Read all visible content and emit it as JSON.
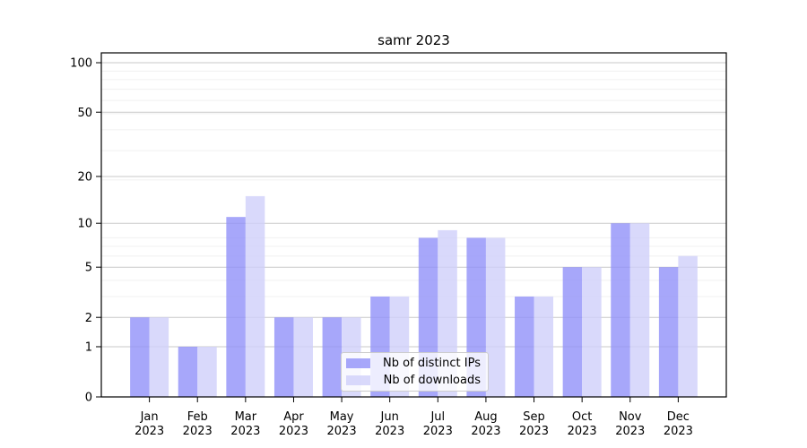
{
  "chart_data": {
    "type": "bar",
    "title": "samr 2023",
    "categories": [
      "Jan",
      "Feb",
      "Mar",
      "Apr",
      "May",
      "Jun",
      "Jul",
      "Aug",
      "Sep",
      "Oct",
      "Nov",
      "Dec"
    ],
    "category_year": "2023",
    "series": [
      {
        "name": "Nb of distinct IPs",
        "color": "#9191f9",
        "color_rendered": "#a9a9fa",
        "values": [
          2,
          1,
          11,
          2,
          2,
          3,
          8,
          8,
          3,
          5,
          10,
          5
        ]
      },
      {
        "name": "Nb of downloads",
        "color": "#cfcffa",
        "color_rendered": "#d9d9fb",
        "values": [
          2,
          1,
          15,
          2,
          2,
          3,
          9,
          8,
          3,
          5,
          10,
          6
        ]
      }
    ],
    "bar_opacity": 0.8,
    "yscale": "log1p",
    "yticks": [
      0,
      1,
      2,
      5,
      10,
      20,
      50,
      100
    ],
    "ylim": [
      0,
      116
    ],
    "xlabel": "",
    "ylabel": "",
    "grid": "both",
    "grid_major_color": "#c9c9c9",
    "grid_minor_color": "#f0f0f0",
    "axis_color": "#000000",
    "legend_position": "lower center"
  }
}
